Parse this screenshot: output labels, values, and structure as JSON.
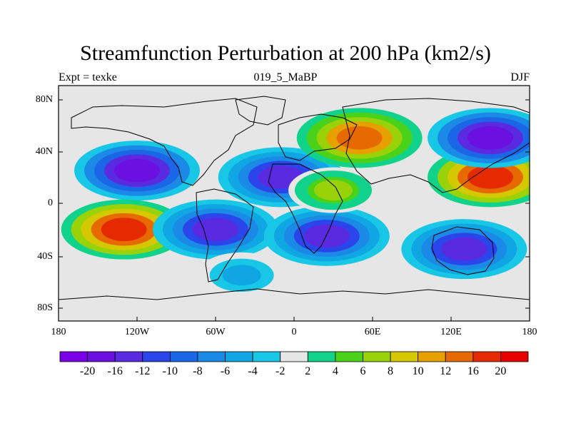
{
  "figure": {
    "title": "Streamfunction Perturbation at 200 hPa (km2/s)",
    "left_string": "Expt = texke",
    "center_string": "019_5_MaBP",
    "right_string": "DJF"
  },
  "axes": {
    "lat_labels": [
      "80N",
      "40N",
      "0",
      "40S",
      "80S"
    ],
    "lon_labels": [
      "180",
      "120W",
      "60W",
      "0",
      "60E",
      "120E",
      "180"
    ]
  },
  "colorbar": {
    "labels": [
      "-20",
      "-16",
      "-12",
      "-10",
      "-8",
      "-6",
      "-4",
      "-2",
      "2",
      "4",
      "6",
      "8",
      "10",
      "12",
      "16",
      "20"
    ],
    "colors": [
      "#7a00e6",
      "#6a10e0",
      "#5a2ae0",
      "#2a46ea",
      "#1a66e6",
      "#1a8ae6",
      "#10a6e4",
      "#18c6e6",
      "#e6e6e6",
      "#10d28a",
      "#4ad21a",
      "#9ad20a",
      "#d6c800",
      "#e6a000",
      "#e66a00",
      "#e62a00",
      "#e60000"
    ]
  },
  "chart_data": {
    "type": "heatmap",
    "title": "Streamfunction Perturbation at 200 hPa (km2/s)",
    "xlabel": "",
    "ylabel": "",
    "xlim": [
      -180,
      180
    ],
    "ylim": [
      -90,
      90
    ],
    "levels": [
      -20,
      -16,
      -12,
      -10,
      -8,
      -6,
      -4,
      -2,
      2,
      4,
      6,
      8,
      10,
      12,
      16,
      20
    ],
    "features": [
      {
        "lon": -120,
        "lat": 25,
        "value": -20
      },
      {
        "lon": -130,
        "lat": -20,
        "value": 20
      },
      {
        "lon": -60,
        "lat": -20,
        "value": -16
      },
      {
        "lon": -10,
        "lat": 20,
        "value": -16
      },
      {
        "lon": 25,
        "lat": -25,
        "value": -16
      },
      {
        "lon": 50,
        "lat": 50,
        "value": 16
      },
      {
        "lon": 150,
        "lat": 20,
        "value": 20
      },
      {
        "lon": 150,
        "lat": 50,
        "value": -20
      },
      {
        "lon": 130,
        "lat": -35,
        "value": -16
      },
      {
        "lon": -40,
        "lat": -55,
        "value": -6
      },
      {
        "lon": 30,
        "lat": 10,
        "value": 8
      }
    ]
  }
}
